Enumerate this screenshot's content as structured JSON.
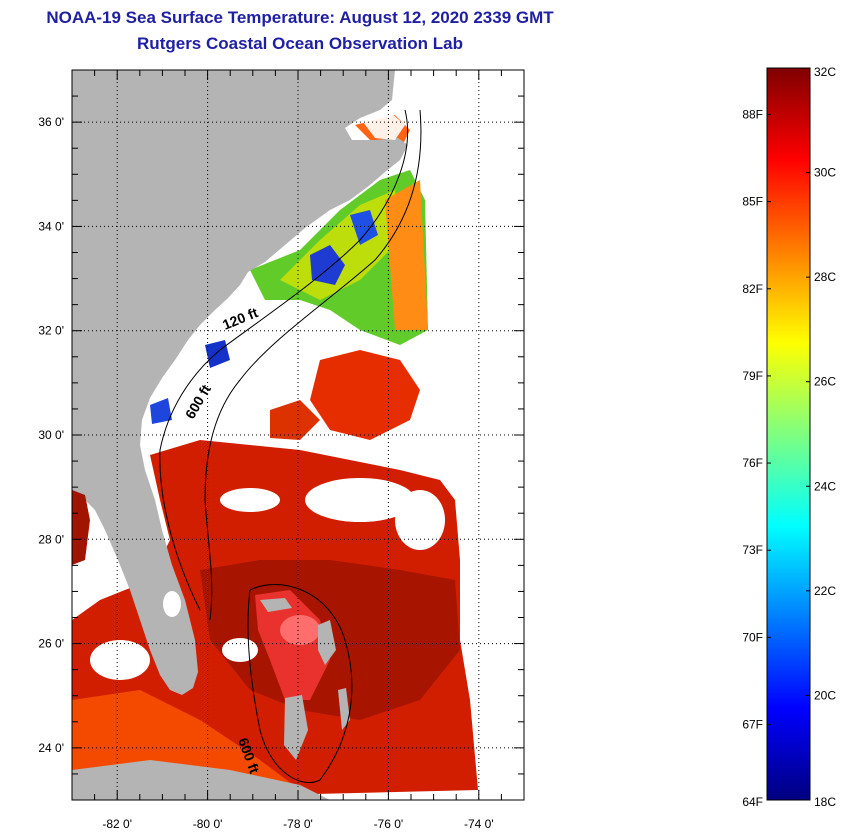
{
  "title": {
    "line1": "NOAA-19 Sea Surface Temperature:  August 12, 2020 2339 GMT",
    "line2": "Rutgers Coastal Ocean Observation Lab"
  },
  "map": {
    "lat_labels": [
      {
        "value": 36,
        "label": "36 0'"
      },
      {
        "value": 34,
        "label": "34 0'"
      },
      {
        "value": 32,
        "label": "32 0'"
      },
      {
        "value": 30,
        "label": "30 0'"
      },
      {
        "value": 28,
        "label": "28 0'"
      },
      {
        "value": 26,
        "label": "26 0'"
      },
      {
        "value": 24,
        "label": "24 0'"
      }
    ],
    "lon_labels": [
      {
        "value": -82,
        "label": "-82 0'"
      },
      {
        "value": -80,
        "label": "-80 0'"
      },
      {
        "value": -78,
        "label": "-78 0'"
      },
      {
        "value": -76,
        "label": "-76 0'"
      },
      {
        "value": -74,
        "label": "-74 0'"
      }
    ],
    "lat_range": [
      23,
      37
    ],
    "lon_range": [
      -83,
      -73
    ],
    "isobath_labels": [
      "120 ft",
      "600 ft",
      "600 ft"
    ],
    "land_color": "#b4b4b4",
    "frame_color": "#000000"
  },
  "colorbar": {
    "celsius_labels": [
      "32C",
      "30C",
      "28C",
      "26C",
      "24C",
      "22C",
      "20C",
      "18C"
    ],
    "fahrenheit_labels": [
      "88F",
      "85F",
      "82F",
      "79F",
      "76F",
      "73F",
      "70F",
      "67F",
      "64F"
    ],
    "range_c": [
      18,
      32
    ],
    "colors": [
      "#00007f",
      "#0000ff",
      "#007fff",
      "#00ffff",
      "#7fff7f",
      "#ffff00",
      "#ff7f00",
      "#ff0000",
      "#7f0000"
    ]
  }
}
